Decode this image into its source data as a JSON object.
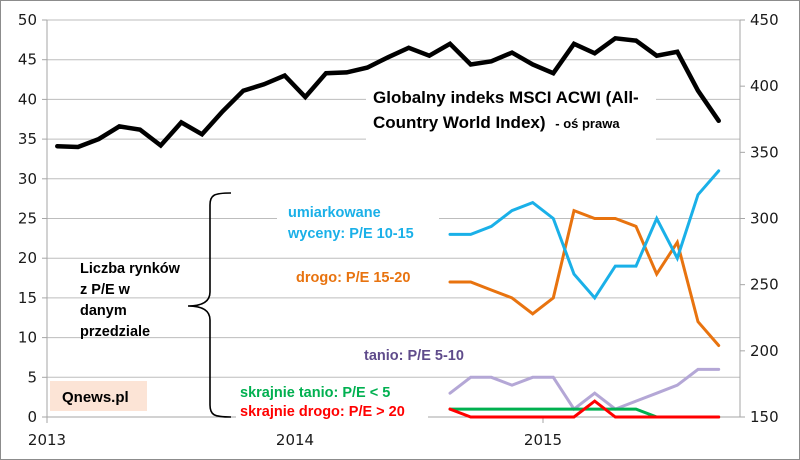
{
  "chart_data": {
    "type": "line",
    "title": "",
    "x_tick_labels": [
      "2013",
      "2014",
      "2015"
    ],
    "left_axis": {
      "min": 0,
      "max": 50,
      "ticks": [
        "0",
        "5",
        "10",
        "15",
        "20",
        "25",
        "30",
        "35",
        "40",
        "45",
        "50"
      ]
    },
    "right_axis": {
      "min": 150,
      "max": 450,
      "ticks": [
        "150",
        "200",
        "250",
        "300",
        "350",
        "400",
        "450"
      ]
    },
    "grid": true,
    "months": [
      "2013-01",
      "2013-02",
      "2013-03",
      "2013-04",
      "2013-05",
      "2013-06",
      "2013-07",
      "2013-08",
      "2013-09",
      "2013-10",
      "2013-11",
      "2013-12",
      "2014-01",
      "2014-02",
      "2014-03",
      "2014-04",
      "2014-05",
      "2014-06",
      "2014-07",
      "2014-08",
      "2014-09",
      "2014-10",
      "2014-11",
      "2014-12",
      "2015-01",
      "2015-02",
      "2015-03",
      "2015-04",
      "2015-05",
      "2015-06",
      "2015-07",
      "2015-08",
      "2015-09"
    ],
    "series": [
      {
        "name": "Globalny indeks MSCI ACWI (All-Country World Index)",
        "axis": "right",
        "color": "#000000",
        "start_index": 0,
        "values": [
          354.6,
          354.0,
          360.0,
          369.6,
          367.2,
          355.2,
          372.6,
          363.6,
          381.0,
          396.6,
          401.4,
          408.0,
          391.8,
          409.8,
          410.4,
          414.0,
          421.8,
          429.0,
          423.0,
          432.0,
          416.4,
          418.8,
          425.4,
          416.4,
          409.8,
          432.0,
          424.8,
          436.2,
          434.4,
          423.0,
          426.0,
          396.6,
          373.8
        ]
      },
      {
        "name": "umiarkowane wyceny: P/E 10-15",
        "axis": "left",
        "color": "#1ab0e8",
        "start_index": 19,
        "values": [
          23,
          23,
          24,
          26,
          27,
          25,
          18,
          15,
          19,
          19,
          25,
          20,
          28,
          31
        ]
      },
      {
        "name": "drogo: P/E 15-20",
        "axis": "left",
        "color": "#e8730f",
        "start_index": 19,
        "values": [
          17,
          17,
          16,
          15,
          13,
          15,
          26,
          25,
          25,
          24,
          18,
          22,
          12,
          9
        ]
      },
      {
        "name": "tanio: P/E 5-10",
        "axis": "left",
        "color": "#b4a7d6",
        "start_index": 19,
        "values": [
          3,
          5,
          5,
          4,
          5,
          5,
          1,
          3,
          1,
          2,
          3,
          4,
          6,
          6
        ]
      },
      {
        "name": "skrajnie tanio: P/E < 5",
        "axis": "left",
        "color": "#00b050",
        "start_index": 19,
        "values": [
          1,
          1,
          1,
          1,
          1,
          1,
          1,
          1,
          1,
          1,
          0,
          0,
          0,
          0
        ]
      },
      {
        "name": "skrajnie drogo: P/E > 20",
        "axis": "left",
        "color": "#ff0000",
        "start_index": 19,
        "values": [
          1,
          0,
          0,
          0,
          0,
          0,
          0,
          2,
          0,
          0,
          0,
          0,
          0,
          0
        ]
      }
    ],
    "annotations": {
      "acwi_label_bold": "Globalny indeks MSCI ACWI (All-",
      "acwi_label_bold_2": "Country World Index)",
      "acwi_label_suffix": "- oś prawa",
      "blue_label_1": "umiarkowane",
      "blue_label_2": "wyceny: P/E 10-15",
      "orange_label": "drogo: P/E 15-20",
      "purple_label": "tanio: P/E 5-10",
      "green_label": "skrajnie tanio: P/E < 5",
      "red_label": "skrajnie drogo: P/E > 20",
      "brace_label": [
        "Liczba rynków",
        "z P/E w",
        "danym",
        "przedziale"
      ],
      "source_badge": "Qnews.pl"
    },
    "colors": {
      "blue_text": "#1ab0e8",
      "orange_text": "#e8730f",
      "purple_text": "#5f4b8b",
      "green_text": "#00b050",
      "red_text": "#ff0000",
      "badge_bg": "#fce4d6"
    }
  }
}
